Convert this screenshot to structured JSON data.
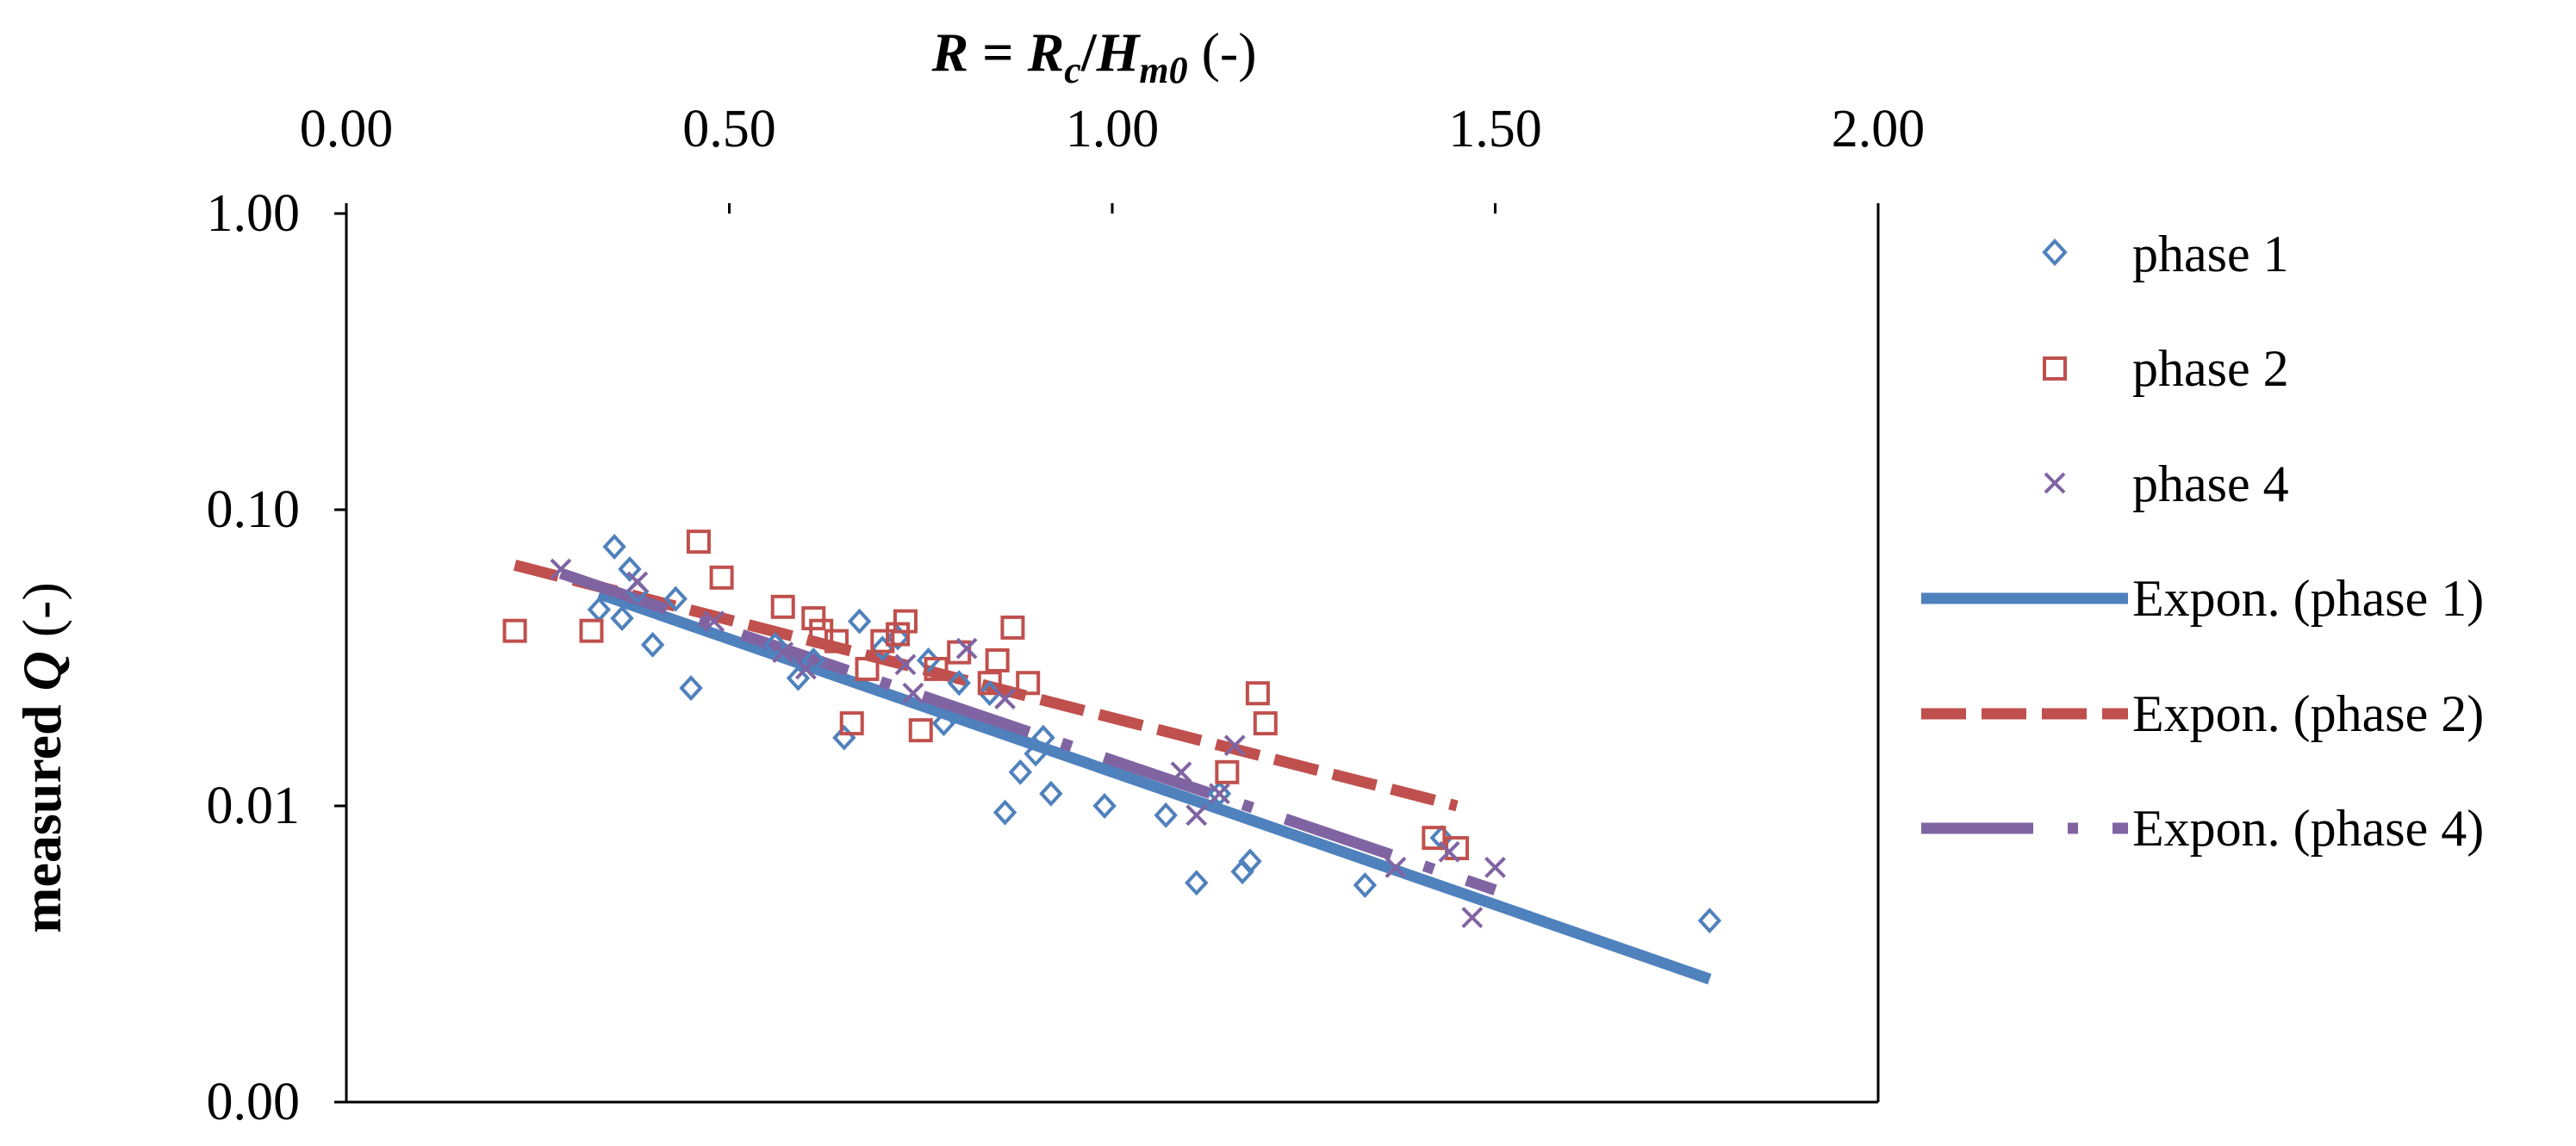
{
  "chart_data": {
    "type": "scatter",
    "xlabel": {
      "italic_main": "R",
      "eq": " = ",
      "rc_base": "R",
      "rc_sub": "c",
      "slash": "/",
      "hm_base": "H",
      "hm_sub": "m0",
      "unit": " (-)"
    },
    "ylabel": {
      "prefix": "measured ",
      "var": "Q",
      "unit": " (-)"
    },
    "xlim": [
      0.0,
      2.0
    ],
    "x_ticks": [
      0.0,
      0.5,
      1.0,
      1.5,
      2.0
    ],
    "x_tick_labels": [
      "0.00",
      "0.50",
      "1.00",
      "1.50",
      "2.00"
    ],
    "y_scale": "log",
    "ylim": [
      0.001,
      1.0
    ],
    "y_ticks": [
      0.001,
      0.01,
      0.1,
      1.0
    ],
    "y_tick_labels": [
      "0.00",
      "0.01",
      "0.10",
      "1.00"
    ],
    "x_axis_position": "top",
    "grid": false,
    "legend_position": "right",
    "series": [
      {
        "name": "phase 1",
        "marker": "diamond",
        "color": "#4F81BD",
        "points": [
          [
            0.33,
            0.046
          ],
          [
            0.35,
            0.075
          ],
          [
            0.36,
            0.043
          ],
          [
            0.37,
            0.063
          ],
          [
            0.38,
            0.053
          ],
          [
            0.4,
            0.035
          ],
          [
            0.43,
            0.05
          ],
          [
            0.45,
            0.025
          ],
          [
            0.56,
            0.035
          ],
          [
            0.59,
            0.027
          ],
          [
            0.61,
            0.031
          ],
          [
            0.65,
            0.017
          ],
          [
            0.67,
            0.042
          ],
          [
            0.7,
            0.034
          ],
          [
            0.72,
            0.037
          ],
          [
            0.76,
            0.031
          ],
          [
            0.78,
            0.019
          ],
          [
            0.8,
            0.026
          ],
          [
            0.84,
            0.024
          ],
          [
            0.86,
            0.0095
          ],
          [
            0.88,
            0.013
          ],
          [
            0.9,
            0.015
          ],
          [
            0.91,
            0.017
          ],
          [
            0.92,
            0.011
          ],
          [
            0.99,
            0.01
          ],
          [
            1.07,
            0.0093
          ],
          [
            1.11,
            0.0055
          ],
          [
            1.14,
            0.011
          ],
          [
            1.17,
            0.006
          ],
          [
            1.18,
            0.0065
          ],
          [
            1.33,
            0.0054
          ],
          [
            1.43,
            0.0078
          ],
          [
            1.78,
            0.0041
          ]
        ]
      },
      {
        "name": "phase 2",
        "marker": "square",
        "color": "#C0504D",
        "points": [
          [
            0.22,
            0.039
          ],
          [
            0.32,
            0.039
          ],
          [
            0.46,
            0.078
          ],
          [
            0.49,
            0.059
          ],
          [
            0.57,
            0.047
          ],
          [
            0.61,
            0.043
          ],
          [
            0.62,
            0.039
          ],
          [
            0.64,
            0.036
          ],
          [
            0.66,
            0.019
          ],
          [
            0.68,
            0.029
          ],
          [
            0.7,
            0.036
          ],
          [
            0.72,
            0.038
          ],
          [
            0.73,
            0.042
          ],
          [
            0.75,
            0.018
          ],
          [
            0.77,
            0.029
          ],
          [
            0.8,
            0.033
          ],
          [
            0.84,
            0.026
          ],
          [
            0.85,
            0.031
          ],
          [
            0.87,
            0.04
          ],
          [
            0.89,
            0.026
          ],
          [
            1.15,
            0.013
          ],
          [
            1.19,
            0.024
          ],
          [
            1.2,
            0.019
          ],
          [
            1.42,
            0.0078
          ],
          [
            1.45,
            0.0072
          ]
        ]
      },
      {
        "name": "phase 4",
        "marker": "x",
        "color": "#8064A2",
        "points": [
          [
            0.28,
            0.063
          ],
          [
            0.38,
            0.057
          ],
          [
            0.48,
            0.042
          ],
          [
            0.57,
            0.033
          ],
          [
            0.6,
            0.029
          ],
          [
            0.73,
            0.03
          ],
          [
            0.74,
            0.024
          ],
          [
            0.81,
            0.034
          ],
          [
            0.86,
            0.023
          ],
          [
            1.09,
            0.013
          ],
          [
            1.11,
            0.0093
          ],
          [
            1.14,
            0.011
          ],
          [
            1.16,
            0.016
          ],
          [
            1.37,
            0.0062
          ],
          [
            1.44,
            0.007
          ],
          [
            1.47,
            0.0042
          ],
          [
            1.5,
            0.0062
          ]
        ]
      }
    ],
    "trendlines": [
      {
        "name": "Expon. (phase 1)",
        "type": "exponential",
        "style": "solid",
        "color": "#4F81BD",
        "x_range": [
          0.33,
          1.78
        ],
        "y_range": [
          0.052,
          0.0026
        ]
      },
      {
        "name": "Expon. (phase 2)",
        "type": "exponential",
        "style": "dashed",
        "color": "#C0504D",
        "x_range": [
          0.22,
          1.45
        ],
        "y_range": [
          0.065,
          0.01
        ]
      },
      {
        "name": "Expon. (phase 4)",
        "type": "exponential",
        "style": "dash-dot",
        "color": "#8064A2",
        "x_range": [
          0.28,
          1.5
        ],
        "y_range": [
          0.061,
          0.0052
        ]
      }
    ]
  }
}
